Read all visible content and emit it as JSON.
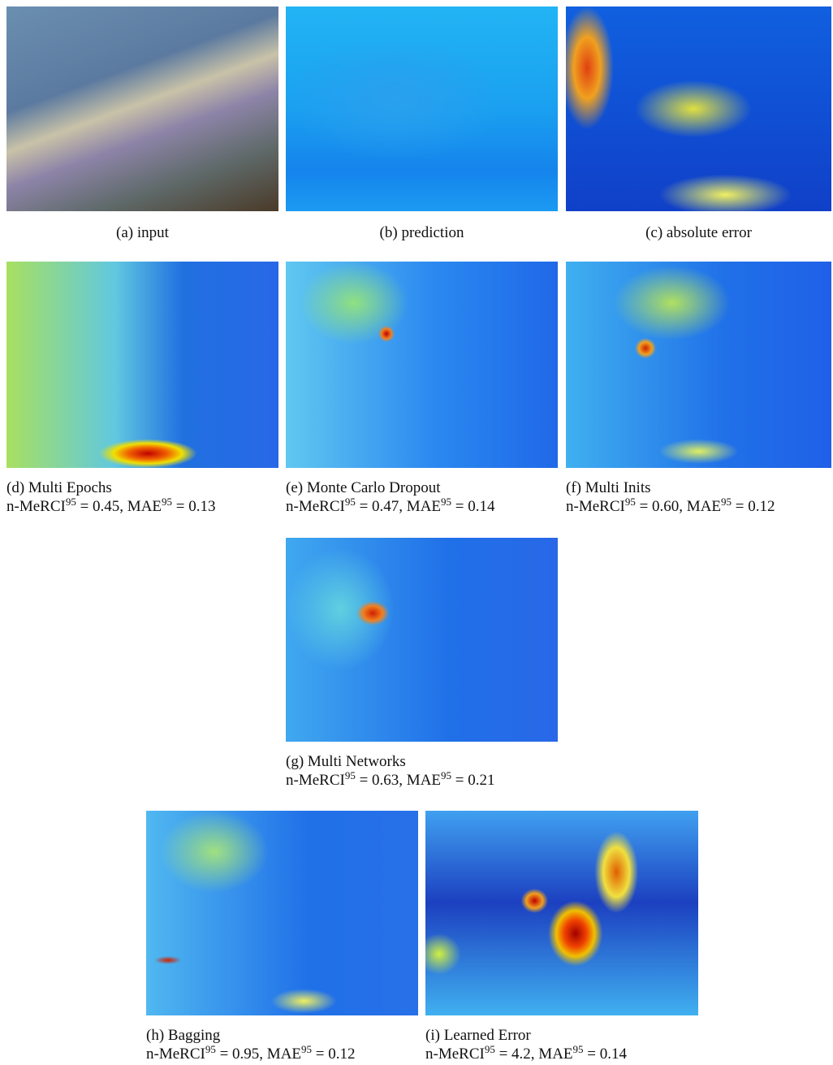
{
  "panels": [
    {
      "label": "(a)",
      "caption": "input"
    },
    {
      "label": "(b)",
      "caption": "prediction"
    },
    {
      "label": "(c)",
      "caption": "absolute error"
    },
    {
      "label": "(d)",
      "caption": "Multi Epochs",
      "metrics": [
        {
          "name": "n-MeRCI",
          "sup": "95",
          "op": "=",
          "value": "0.45"
        },
        {
          "name": "MAE",
          "sup": "95",
          "op": "=",
          "value": "0.13"
        }
      ]
    },
    {
      "label": "(e)",
      "caption": "Monte Carlo Dropout",
      "metrics": [
        {
          "name": "n-MeRCI",
          "sup": "95",
          "op": "=",
          "value": "0.47"
        },
        {
          "name": "MAE",
          "sup": "95",
          "op": "=",
          "value": "0.14"
        }
      ]
    },
    {
      "label": "(f)",
      "caption": "Multi Inits",
      "metrics": [
        {
          "name": "n-MeRCI",
          "sup": "95",
          "op": "=",
          "value": "0.60"
        },
        {
          "name": "MAE",
          "sup": "95",
          "op": "=",
          "value": "0.12"
        }
      ]
    },
    {
      "label": "(g)",
      "caption": "Multi Networks",
      "metrics": [
        {
          "name": "n-MeRCI",
          "sup": "95",
          "op": "=",
          "value": "0.63"
        },
        {
          "name": "MAE",
          "sup": "95",
          "op": "=",
          "value": "0.21"
        }
      ]
    },
    {
      "label": "(h)",
      "caption": "Bagging",
      "metrics": [
        {
          "name": "n-MeRCI",
          "sup": "95",
          "op": "=",
          "value": "0.95"
        },
        {
          "name": "MAE",
          "sup": "95",
          "op": "=",
          "value": "0.12"
        }
      ]
    },
    {
      "label": "(i)",
      "caption": "Learned Error",
      "metrics": [
        {
          "name": "n-MeRCI",
          "sup": "95",
          "op": "=",
          "value": "4.2"
        },
        {
          "name": "MAE",
          "sup": "95",
          "op": "=",
          "value": "0.14"
        }
      ]
    }
  ],
  "metric_separator": ","
}
